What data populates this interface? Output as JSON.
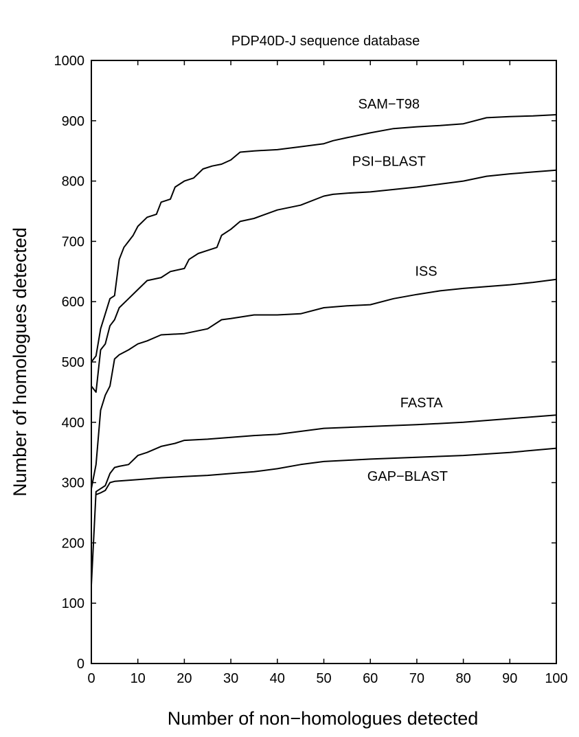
{
  "chart_data": {
    "type": "line",
    "title": "PDP40D-J sequence database",
    "xlabel": "Number of non−homologues detected",
    "ylabel": "Number of homologues detected",
    "xlim": [
      0,
      100
    ],
    "ylim": [
      0,
      1000
    ],
    "xticks": [
      0,
      10,
      20,
      30,
      40,
      50,
      60,
      70,
      80,
      90,
      100
    ],
    "yticks": [
      0,
      100,
      200,
      300,
      400,
      500,
      600,
      700,
      800,
      900,
      1000
    ],
    "grid": false,
    "legend": "inline labels",
    "series": [
      {
        "name": "SAM−T98",
        "label_at": [
          64,
          920
        ],
        "points": [
          [
            0,
            500
          ],
          [
            1,
            510
          ],
          [
            2,
            555
          ],
          [
            3,
            580
          ],
          [
            4,
            605
          ],
          [
            5,
            610
          ],
          [
            6,
            670
          ],
          [
            7,
            690
          ],
          [
            8,
            700
          ],
          [
            9,
            710
          ],
          [
            10,
            725
          ],
          [
            12,
            740
          ],
          [
            14,
            745
          ],
          [
            15,
            765
          ],
          [
            17,
            770
          ],
          [
            18,
            790
          ],
          [
            20,
            800
          ],
          [
            22,
            805
          ],
          [
            24,
            820
          ],
          [
            26,
            825
          ],
          [
            28,
            828
          ],
          [
            30,
            835
          ],
          [
            32,
            848
          ],
          [
            35,
            850
          ],
          [
            40,
            852
          ],
          [
            45,
            857
          ],
          [
            50,
            862
          ],
          [
            52,
            867
          ],
          [
            55,
            872
          ],
          [
            60,
            880
          ],
          [
            65,
            887
          ],
          [
            70,
            890
          ],
          [
            75,
            892
          ],
          [
            80,
            895
          ],
          [
            85,
            905
          ],
          [
            90,
            907
          ],
          [
            95,
            908
          ],
          [
            100,
            910
          ]
        ]
      },
      {
        "name": "PSI−BLAST",
        "label_at": [
          64,
          825
        ],
        "points": [
          [
            0,
            460
          ],
          [
            1,
            450
          ],
          [
            2,
            520
          ],
          [
            3,
            530
          ],
          [
            4,
            560
          ],
          [
            5,
            570
          ],
          [
            6,
            590
          ],
          [
            8,
            605
          ],
          [
            10,
            620
          ],
          [
            12,
            635
          ],
          [
            15,
            640
          ],
          [
            17,
            650
          ],
          [
            20,
            655
          ],
          [
            21,
            670
          ],
          [
            23,
            680
          ],
          [
            25,
            685
          ],
          [
            27,
            690
          ],
          [
            28,
            710
          ],
          [
            30,
            720
          ],
          [
            32,
            733
          ],
          [
            35,
            738
          ],
          [
            40,
            752
          ],
          [
            45,
            760
          ],
          [
            50,
            775
          ],
          [
            52,
            778
          ],
          [
            55,
            780
          ],
          [
            60,
            782
          ],
          [
            65,
            786
          ],
          [
            70,
            790
          ],
          [
            75,
            795
          ],
          [
            80,
            800
          ],
          [
            85,
            808
          ],
          [
            90,
            812
          ],
          [
            95,
            815
          ],
          [
            100,
            818
          ]
        ]
      },
      {
        "name": "ISS",
        "label_at": [
          72,
          643
        ],
        "points": [
          [
            0,
            290
          ],
          [
            1,
            330
          ],
          [
            2,
            420
          ],
          [
            3,
            445
          ],
          [
            4,
            460
          ],
          [
            5,
            505
          ],
          [
            6,
            512
          ],
          [
            8,
            520
          ],
          [
            10,
            530
          ],
          [
            12,
            535
          ],
          [
            15,
            545
          ],
          [
            20,
            547
          ],
          [
            25,
            555
          ],
          [
            28,
            570
          ],
          [
            30,
            572
          ],
          [
            35,
            578
          ],
          [
            40,
            578
          ],
          [
            45,
            580
          ],
          [
            50,
            590
          ],
          [
            55,
            593
          ],
          [
            60,
            595
          ],
          [
            65,
            605
          ],
          [
            70,
            612
          ],
          [
            75,
            618
          ],
          [
            80,
            622
          ],
          [
            85,
            625
          ],
          [
            90,
            628
          ],
          [
            95,
            632
          ],
          [
            100,
            637
          ]
        ]
      },
      {
        "name": "FASTA",
        "label_at": [
          71,
          425
        ],
        "points": [
          [
            0,
            130
          ],
          [
            1,
            285
          ],
          [
            2,
            290
          ],
          [
            3,
            295
          ],
          [
            4,
            315
          ],
          [
            5,
            325
          ],
          [
            6,
            327
          ],
          [
            8,
            330
          ],
          [
            10,
            345
          ],
          [
            12,
            350
          ],
          [
            15,
            360
          ],
          [
            18,
            365
          ],
          [
            20,
            370
          ],
          [
            25,
            372
          ],
          [
            30,
            375
          ],
          [
            35,
            378
          ],
          [
            40,
            380
          ],
          [
            45,
            385
          ],
          [
            50,
            390
          ],
          [
            60,
            393
          ],
          [
            70,
            396
          ],
          [
            80,
            400
          ],
          [
            90,
            406
          ],
          [
            100,
            412
          ]
        ]
      },
      {
        "name": "GAP−BLAST",
        "label_at": [
          68,
          303
        ],
        "points": [
          [
            1,
            280
          ],
          [
            2,
            283
          ],
          [
            3,
            287
          ],
          [
            4,
            300
          ],
          [
            5,
            302
          ],
          [
            10,
            305
          ],
          [
            15,
            308
          ],
          [
            20,
            310
          ],
          [
            25,
            312
          ],
          [
            30,
            315
          ],
          [
            35,
            318
          ],
          [
            40,
            323
          ],
          [
            45,
            330
          ],
          [
            50,
            335
          ],
          [
            55,
            337
          ],
          [
            60,
            339
          ],
          [
            70,
            342
          ],
          [
            80,
            345
          ],
          [
            90,
            350
          ],
          [
            100,
            357
          ]
        ]
      }
    ]
  }
}
